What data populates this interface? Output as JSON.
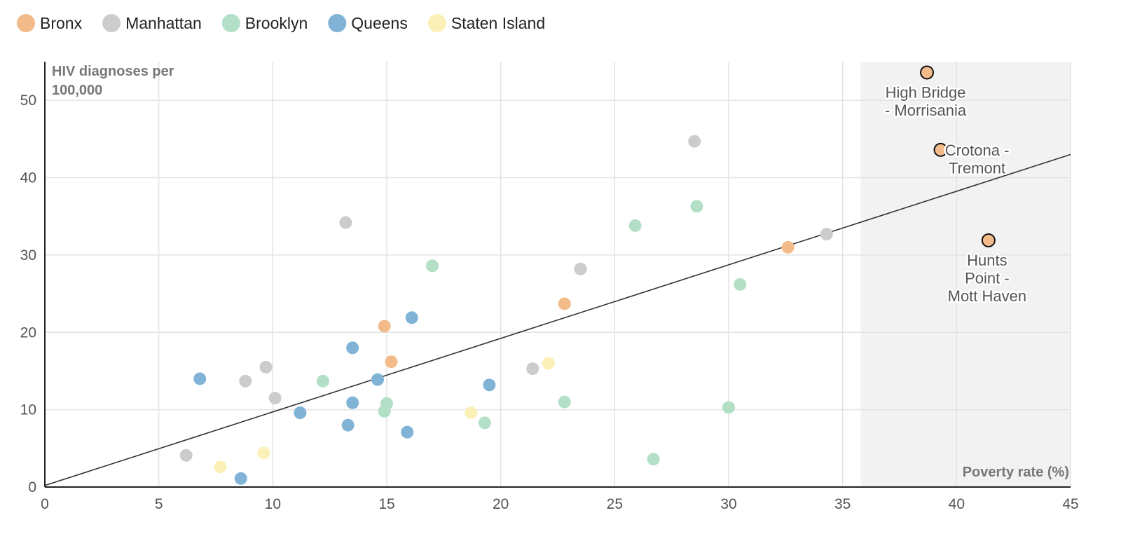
{
  "chart_data": {
    "type": "scatter",
    "title": "",
    "xlabel": "Poverty rate (%)",
    "ylabel_lines": [
      "HIV diagnoses per",
      "100,000"
    ],
    "xlim": [
      0,
      45
    ],
    "ylim": [
      0,
      55
    ],
    "x_ticks": [
      0,
      5,
      10,
      15,
      20,
      25,
      30,
      35,
      40,
      45
    ],
    "y_ticks": [
      0,
      10,
      20,
      30,
      40,
      50
    ],
    "grid": true,
    "legend_position": "top-left",
    "highlight_region": {
      "x_from": 35.8,
      "x_to": 45,
      "color": "#f2f2f2"
    },
    "trendline": {
      "x": [
        0,
        45
      ],
      "y": [
        0.2,
        43
      ]
    },
    "series": [
      {
        "name": "Bronx",
        "color": "#f4bb8a",
        "points": [
          {
            "x": 14.9,
            "y": 20.8
          },
          {
            "x": 15.2,
            "y": 16.2
          },
          {
            "x": 22.8,
            "y": 23.7
          },
          {
            "x": 32.6,
            "y": 31.0
          },
          {
            "x": 38.7,
            "y": 53.6,
            "highlight": true,
            "label": [
              "High Bridge",
              "- Morrisania"
            ],
            "label_pos": "below"
          },
          {
            "x": 39.3,
            "y": 43.6,
            "highlight": true,
            "label": [
              "Crotona -",
              "Tremont"
            ],
            "label_pos": "right"
          },
          {
            "x": 41.4,
            "y": 31.9,
            "highlight": true,
            "label": [
              "Hunts",
              "Point -",
              "Mott Haven"
            ],
            "label_pos": "below"
          }
        ]
      },
      {
        "name": "Manhattan",
        "color": "#cccccc",
        "points": [
          {
            "x": 6.2,
            "y": 4.1
          },
          {
            "x": 8.8,
            "y": 13.7
          },
          {
            "x": 9.7,
            "y": 15.5
          },
          {
            "x": 10.1,
            "y": 11.5
          },
          {
            "x": 13.2,
            "y": 34.2
          },
          {
            "x": 21.4,
            "y": 15.3
          },
          {
            "x": 23.5,
            "y": 28.2
          },
          {
            "x": 28.5,
            "y": 44.7
          },
          {
            "x": 34.3,
            "y": 32.7
          }
        ]
      },
      {
        "name": "Brooklyn",
        "color": "#b3dfc7",
        "points": [
          {
            "x": 12.2,
            "y": 13.7
          },
          {
            "x": 14.9,
            "y": 9.8
          },
          {
            "x": 15.0,
            "y": 10.8
          },
          {
            "x": 17.0,
            "y": 28.6
          },
          {
            "x": 19.3,
            "y": 8.3
          },
          {
            "x": 22.8,
            "y": 11.0
          },
          {
            "x": 25.9,
            "y": 33.8
          },
          {
            "x": 26.7,
            "y": 3.6
          },
          {
            "x": 28.6,
            "y": 36.3
          },
          {
            "x": 30.0,
            "y": 10.3
          },
          {
            "x": 30.5,
            "y": 26.2
          }
        ]
      },
      {
        "name": "Queens",
        "color": "#80b3d6",
        "points": [
          {
            "x": 6.8,
            "y": 14.0
          },
          {
            "x": 8.6,
            "y": 1.1
          },
          {
            "x": 11.2,
            "y": 9.6
          },
          {
            "x": 13.3,
            "y": 8.0
          },
          {
            "x": 13.5,
            "y": 10.9
          },
          {
            "x": 13.5,
            "y": 18.0
          },
          {
            "x": 14.6,
            "y": 13.9
          },
          {
            "x": 15.9,
            "y": 7.1
          },
          {
            "x": 16.1,
            "y": 21.9
          },
          {
            "x": 19.5,
            "y": 13.2
          }
        ]
      },
      {
        "name": "Staten Island",
        "color": "#fbf1b8",
        "points": [
          {
            "x": 7.7,
            "y": 2.6
          },
          {
            "x": 9.6,
            "y": 4.4
          },
          {
            "x": 18.7,
            "y": 9.6
          },
          {
            "x": 22.1,
            "y": 16.0
          }
        ]
      }
    ]
  }
}
